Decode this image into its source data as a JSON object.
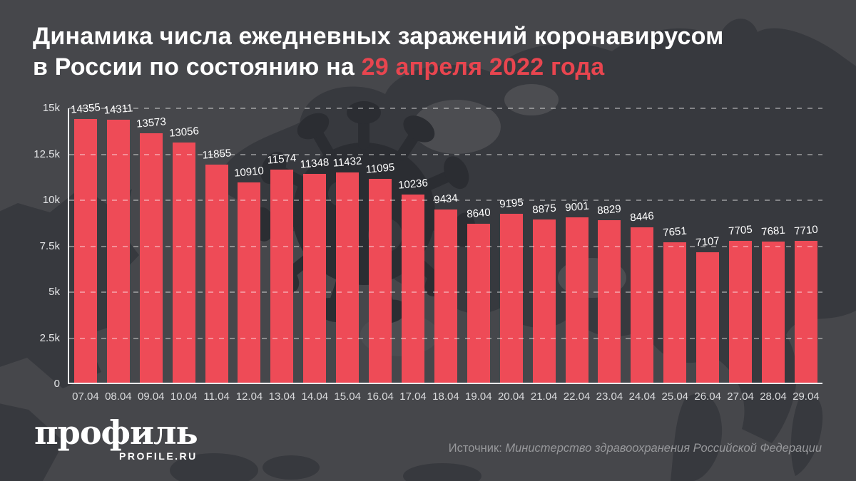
{
  "title": {
    "line1": "Динамика числа ежедневных заражений коронавирусом",
    "line2_prefix": "в России по состоянию на ",
    "line2_highlight": "29 апреля 2022 года"
  },
  "chart_data": {
    "type": "bar",
    "title": "Динамика числа ежедневных заражений коронавирусом в России по состоянию на 29 апреля 2022 года",
    "categories": [
      "07.04",
      "08.04",
      "09.04",
      "10.04",
      "11.04",
      "12.04",
      "13.04",
      "14.04",
      "15.04",
      "16.04",
      "17.04",
      "18.04",
      "19.04",
      "20.04",
      "21.04",
      "22.04",
      "23.04",
      "24.04",
      "25.04",
      "26.04",
      "27.04",
      "28.04",
      "29.04"
    ],
    "values": [
      14355,
      14311,
      13573,
      13056,
      11855,
      10910,
      11574,
      11348,
      11432,
      11095,
      10236,
      9434,
      8640,
      9195,
      8875,
      9001,
      8829,
      8446,
      7651,
      7107,
      7705,
      7681,
      7710
    ],
    "xlabel": "",
    "ylabel": "",
    "ylim": [
      0,
      15000
    ],
    "yticks": [
      {
        "label": "0",
        "value": 0
      },
      {
        "label": "2.5k",
        "value": 2500
      },
      {
        "label": "5k",
        "value": 5000
      },
      {
        "label": "7.5k",
        "value": 7500
      },
      {
        "label": "10k",
        "value": 10000
      },
      {
        "label": "12.5k",
        "value": 12500
      },
      {
        "label": "15k",
        "value": 15000
      }
    ],
    "grid": true,
    "gridline_style": "dashed",
    "legend": false,
    "bar_color": "#ee4b57",
    "value_labels": true
  },
  "footer": {
    "logo_text": "профиль",
    "logo_subtext": "PROFILE.RU",
    "source_prefix": "Источник:",
    "source_name": "Министерство здравоохранения Российской Федерации"
  },
  "colors": {
    "background": "#46474b",
    "map_silhouette": "#37393e",
    "virus_silhouette": "#2b2d32",
    "light_patch": "#4c4d51",
    "bar": "#ee4b57",
    "title_text": "#ffffff",
    "title_highlight": "#e8454f",
    "axis_line": "#e9eaec",
    "tick_text": "#d9dadc",
    "source_text": "#97989b"
  }
}
